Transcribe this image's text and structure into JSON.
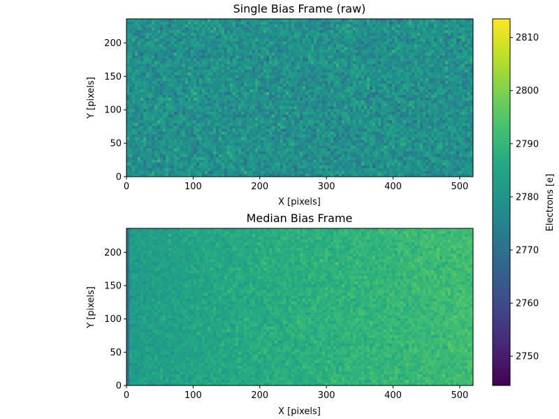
{
  "chart_data": [
    {
      "type": "heatmap",
      "title": "Single Bias Frame (raw)",
      "xlabel": "X [pixels]",
      "ylabel": "Y [pixels]",
      "xlim": [
        0,
        520
      ],
      "ylim": [
        0,
        236
      ],
      "xticks": [
        0,
        100,
        200,
        300,
        400,
        500
      ],
      "yticks": [
        0,
        50,
        100,
        150,
        200
      ],
      "value_mean": 2779,
      "value_noise": 6
    },
    {
      "type": "heatmap",
      "title": "Median Bias Frame",
      "xlabel": "X [pixels]",
      "ylabel": "Y [pixels]",
      "xlim": [
        0,
        520
      ],
      "ylim": [
        0,
        236
      ],
      "xticks": [
        0,
        100,
        200,
        300,
        400,
        500
      ],
      "yticks": [
        0,
        50,
        100,
        150,
        200
      ],
      "value_left": 2782,
      "value_right": 2792,
      "value_noise": 3,
      "left_edge_column_value": 2770
    }
  ],
  "colorbar": {
    "label": "Electrons [e]",
    "colormap": "viridis",
    "vmin": 2744.5,
    "vmax": 2813.5,
    "ticks": [
      2750,
      2760,
      2770,
      2780,
      2790,
      2800,
      2810
    ]
  },
  "colors": {
    "viridis_low": "#440154",
    "viridis_mid": "#21918c",
    "viridis_high": "#fde725"
  }
}
